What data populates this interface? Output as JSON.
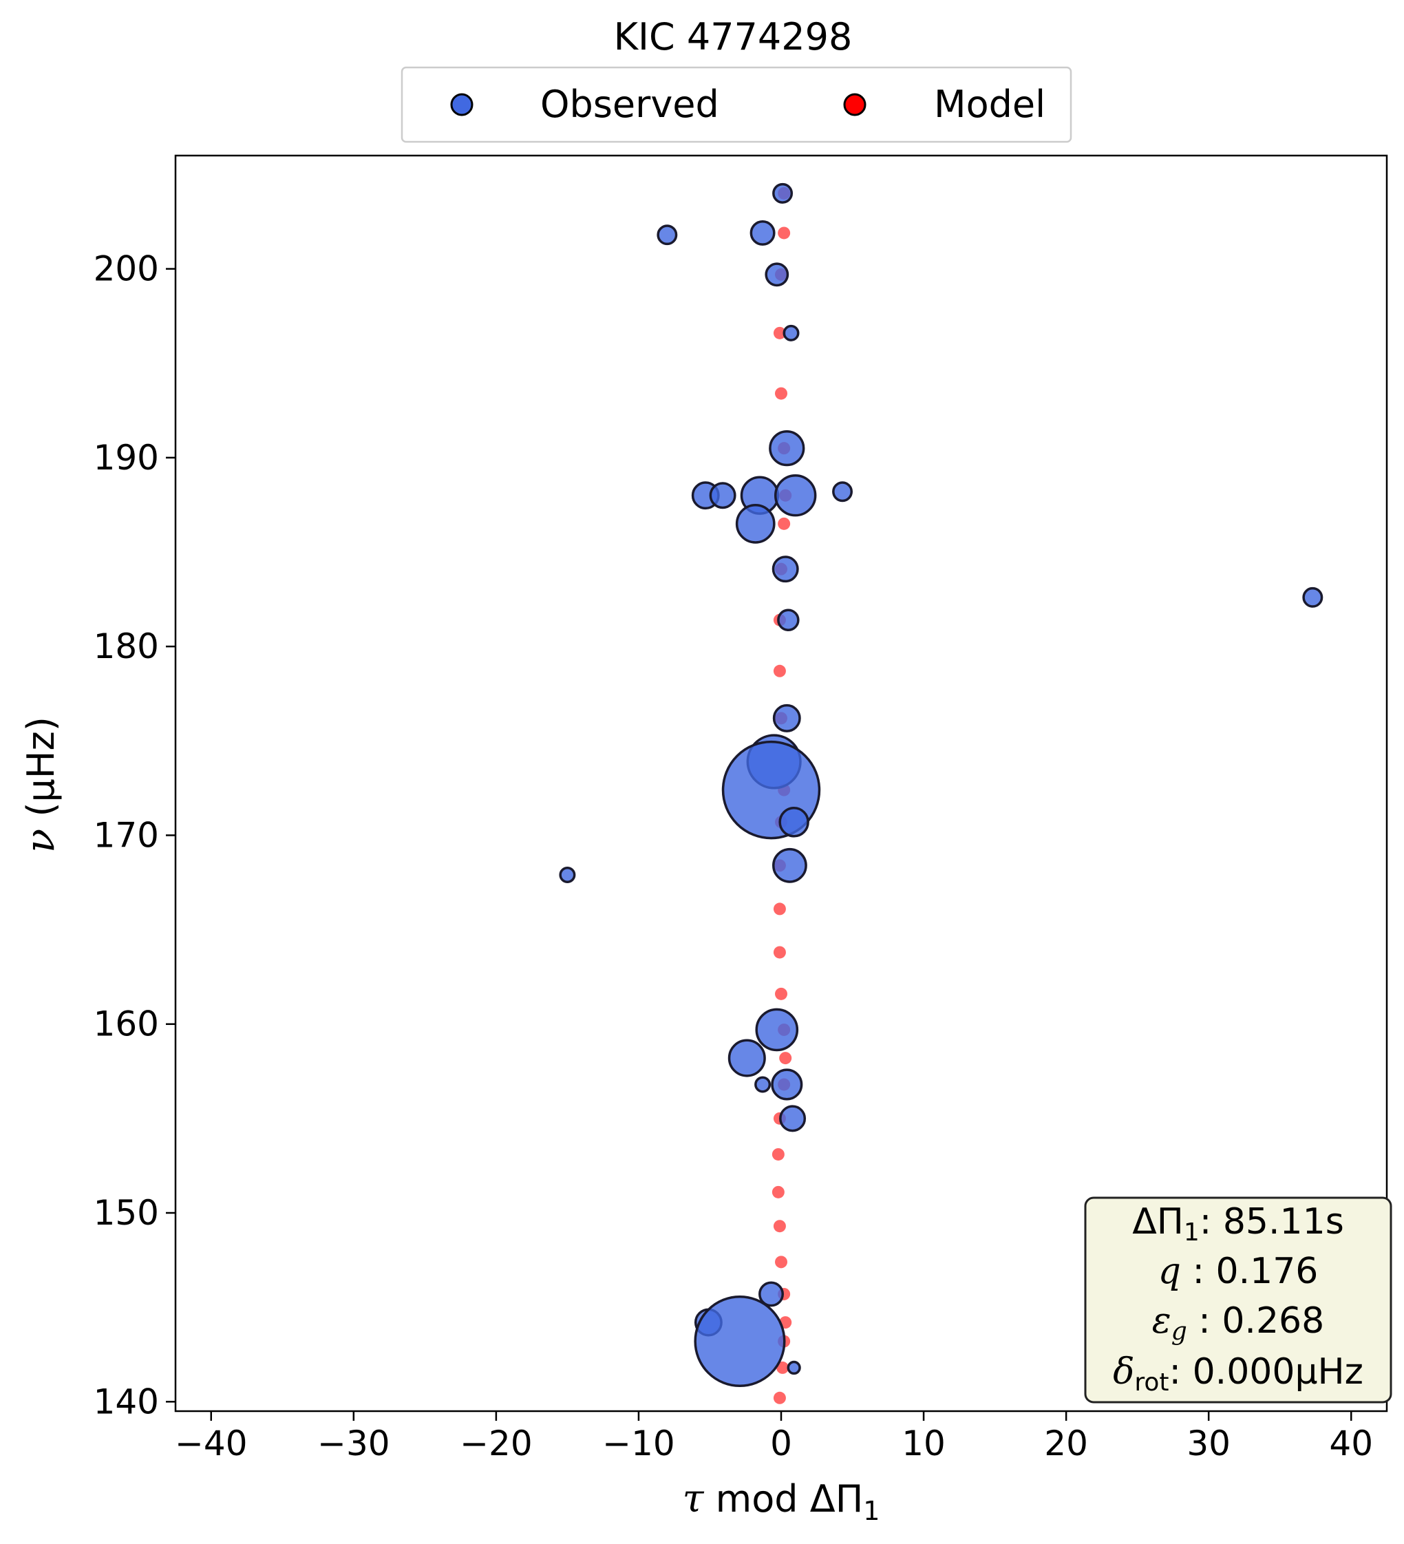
{
  "chart_data": {
    "type": "scatter",
    "title": "KIC 4774298",
    "xlabel": "τ mod ΔΠ1",
    "xlabel_parts": {
      "tau": "τ",
      "mod": " mod ΔΠ",
      "sub": "1"
    },
    "ylabel": "ν (μHz)",
    "ylabel_parts": {
      "nu": "ν",
      "rest": " (μHz)"
    },
    "xlim": [
      -42.5,
      42.5
    ],
    "ylim": [
      139.5,
      206
    ],
    "xticks": [
      -40,
      -30,
      -20,
      -10,
      0,
      10,
      20,
      30,
      40
    ],
    "xtick_labels": [
      "−40",
      "−30",
      "−20",
      "−10",
      "0",
      "10",
      "20",
      "30",
      "40"
    ],
    "yticks": [
      140,
      150,
      160,
      170,
      180,
      190,
      200
    ],
    "ytick_labels": [
      "140",
      "150",
      "160",
      "170",
      "180",
      "190",
      "200"
    ],
    "grid": false,
    "legend_placement": "top-center-outside",
    "series": [
      {
        "name": "Observed",
        "color": "#4169e1",
        "edgecolor": "#1a1a2e",
        "points": [
          {
            "x": 0.1,
            "y": 204.0,
            "s": 0.5
          },
          {
            "x": -8.0,
            "y": 201.8,
            "s": 0.5
          },
          {
            "x": -1.3,
            "y": 201.9,
            "s": 0.8
          },
          {
            "x": -0.3,
            "y": 199.7,
            "s": 0.7
          },
          {
            "x": 0.7,
            "y": 196.6,
            "s": 0.3
          },
          {
            "x": 0.4,
            "y": 190.5,
            "s": 1.7
          },
          {
            "x": -5.3,
            "y": 188.0,
            "s": 1.0
          },
          {
            "x": -4.1,
            "y": 188.0,
            "s": 0.9
          },
          {
            "x": -1.5,
            "y": 188.0,
            "s": 2.0
          },
          {
            "x": 1.0,
            "y": 188.0,
            "s": 2.4
          },
          {
            "x": 4.3,
            "y": 188.2,
            "s": 0.5
          },
          {
            "x": -1.8,
            "y": 186.5,
            "s": 2.1
          },
          {
            "x": 0.3,
            "y": 184.1,
            "s": 0.9
          },
          {
            "x": 37.3,
            "y": 182.6,
            "s": 0.5
          },
          {
            "x": 0.5,
            "y": 181.4,
            "s": 0.6
          },
          {
            "x": 0.4,
            "y": 176.2,
            "s": 1.0
          },
          {
            "x": -0.5,
            "y": 173.9,
            "s": 4.2
          },
          {
            "x": -0.7,
            "y": 172.4,
            "s": 14.0
          },
          {
            "x": 0.9,
            "y": 170.7,
            "s": 1.2
          },
          {
            "x": 0.6,
            "y": 168.4,
            "s": 1.6
          },
          {
            "x": -15.0,
            "y": 167.9,
            "s": 0.3
          },
          {
            "x": -0.3,
            "y": 159.7,
            "s": 2.5
          },
          {
            "x": -2.4,
            "y": 158.2,
            "s": 1.9
          },
          {
            "x": -1.3,
            "y": 156.8,
            "s": 0.3
          },
          {
            "x": 0.4,
            "y": 156.8,
            "s": 1.3
          },
          {
            "x": 0.8,
            "y": 155.0,
            "s": 0.9
          },
          {
            "x": -0.7,
            "y": 145.7,
            "s": 0.8
          },
          {
            "x": -5.1,
            "y": 144.2,
            "s": 1.0
          },
          {
            "x": -2.9,
            "y": 143.2,
            "s": 12.0
          },
          {
            "x": 0.9,
            "y": 141.8,
            "s": 0.2
          }
        ]
      },
      {
        "name": "Model",
        "color": "#ff0000",
        "points": [
          {
            "x": 0.2,
            "y": 204.0
          },
          {
            "x": 0.2,
            "y": 201.9
          },
          {
            "x": 0.0,
            "y": 199.7
          },
          {
            "x": -0.1,
            "y": 196.6
          },
          {
            "x": 0.0,
            "y": 193.4
          },
          {
            "x": 0.2,
            "y": 190.5
          },
          {
            "x": 0.3,
            "y": 188.0
          },
          {
            "x": 0.2,
            "y": 186.5
          },
          {
            "x": 0.0,
            "y": 184.1
          },
          {
            "x": -0.1,
            "y": 181.4
          },
          {
            "x": -0.1,
            "y": 178.7
          },
          {
            "x": 0.0,
            "y": 176.2
          },
          {
            "x": 0.2,
            "y": 172.4
          },
          {
            "x": 0.0,
            "y": 170.7
          },
          {
            "x": -0.1,
            "y": 168.4
          },
          {
            "x": -0.1,
            "y": 166.1
          },
          {
            "x": -0.1,
            "y": 163.8
          },
          {
            "x": 0.0,
            "y": 161.6
          },
          {
            "x": 0.2,
            "y": 159.7
          },
          {
            "x": 0.3,
            "y": 158.2
          },
          {
            "x": 0.2,
            "y": 156.8
          },
          {
            "x": -0.1,
            "y": 155.0
          },
          {
            "x": -0.2,
            "y": 153.1
          },
          {
            "x": -0.2,
            "y": 151.1
          },
          {
            "x": -0.1,
            "y": 149.3
          },
          {
            "x": 0.0,
            "y": 147.4
          },
          {
            "x": 0.2,
            "y": 145.7
          },
          {
            "x": 0.3,
            "y": 144.2
          },
          {
            "x": 0.2,
            "y": 143.2
          },
          {
            "x": 0.1,
            "y": 141.8
          },
          {
            "x": -0.1,
            "y": 140.2
          }
        ]
      }
    ],
    "annotation": {
      "dpi_label": "ΔΠ",
      "dpi_sub": "1",
      "dpi_value": ": 85.11s",
      "q_label": "q",
      "q_value": " :  0.176",
      "eps_label": "ε",
      "eps_sub": "g",
      "eps_value": " : 0.268",
      "delta_label": "δ",
      "delta_sub": "rot",
      "delta_value": ": 0.000μHz"
    }
  }
}
